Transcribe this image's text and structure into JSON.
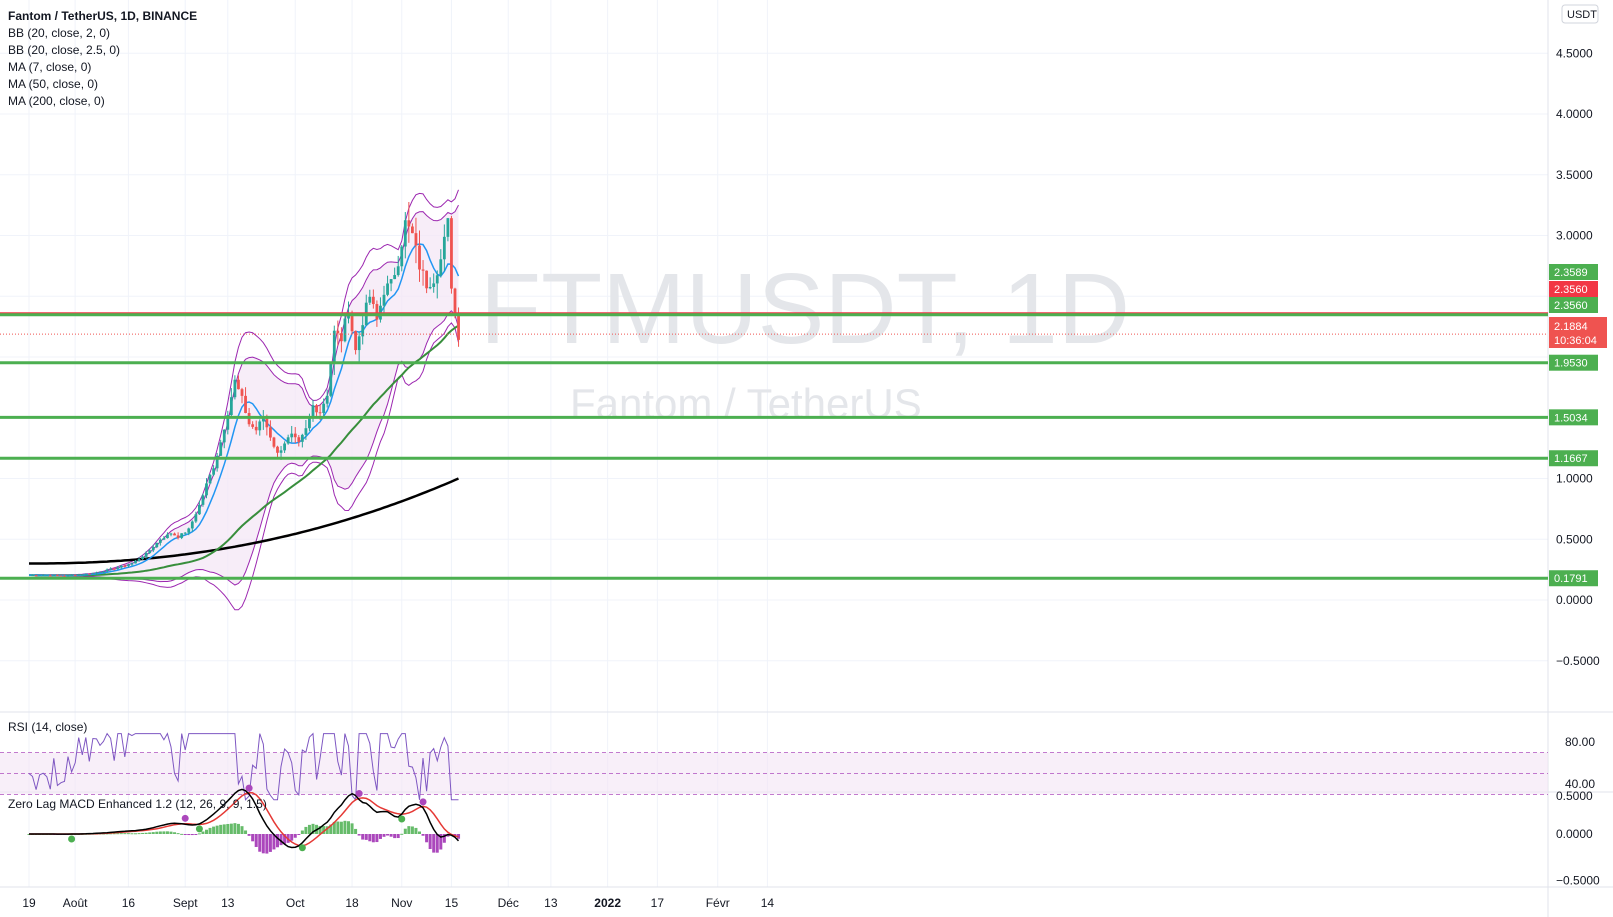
{
  "header": {
    "title": "Fantom / TetherUS, 1D, BINANCE",
    "indicators": [
      "BB (20, close, 2, 0)",
      "BB (20, close, 2.5, 0)",
      "MA (7, close, 0)",
      "MA (50, close, 0)",
      "MA (200, close, 0)"
    ]
  },
  "watermark": {
    "symbol": "FTMUSDT, 1D",
    "name": "Fantom / TetherUS"
  },
  "currency_label": "USDT",
  "colors": {
    "up": "#26a69a",
    "down": "#ef5350",
    "bb_fill": "#f3e5f5",
    "bb_line": "#9c27b0",
    "ma7": "#2196f3",
    "ma50": "#388e3c",
    "ma200": "#000000",
    "hline_red": "#f23645",
    "hline_green": "#4caf50"
  },
  "chart_data": [
    {
      "type": "candlestick",
      "title": "Fantom / TetherUS, 1D, BINANCE",
      "xlabel": "",
      "ylabel": "",
      "x_ticks": [
        "19",
        "Août",
        "16",
        "Sept",
        "13",
        "Oct",
        "18",
        "Nov",
        "15",
        "Déc",
        "13",
        "2022",
        "17",
        "Févr",
        "14"
      ],
      "y_ticks": [
        "4.5000",
        "4.0000",
        "3.5000",
        "3.0000",
        "1.0000",
        "0.5000",
        "0.0000",
        "−0.5000"
      ],
      "ylim": [
        -1.0,
        4.9
      ],
      "last_price": {
        "value": "2.1884",
        "countdown": "10:36:04"
      },
      "horizontal_levels": [
        {
          "value": 2.3589,
          "label": "2.3589",
          "color": "#4caf50"
        },
        {
          "value": 2.356,
          "label": "2.3560",
          "color": "#f23645"
        },
        {
          "value": 2.356,
          "label": "2.3560",
          "color": "#4caf50"
        },
        {
          "value": 1.953,
          "label": "1.9530",
          "color": "#4caf50"
        },
        {
          "value": 1.5034,
          "label": "1.5034",
          "color": "#4caf50"
        },
        {
          "value": 1.1667,
          "label": "1.1667",
          "color": "#4caf50"
        },
        {
          "value": 0.1791,
          "label": "0.1791",
          "color": "#4caf50"
        }
      ],
      "grid": true
    },
    {
      "type": "line",
      "title": "RSI (14, close)",
      "y_ticks": [
        "80.00",
        "40.00"
      ],
      "bands": [
        70,
        50,
        30
      ]
    },
    {
      "type": "bar",
      "title": "Zero Lag MACD Enhanced 1.2 (12, 26, 9, 9, 1.5)",
      "y_ticks": [
        "0.5000",
        "0.0000",
        "−0.5000"
      ]
    }
  ]
}
